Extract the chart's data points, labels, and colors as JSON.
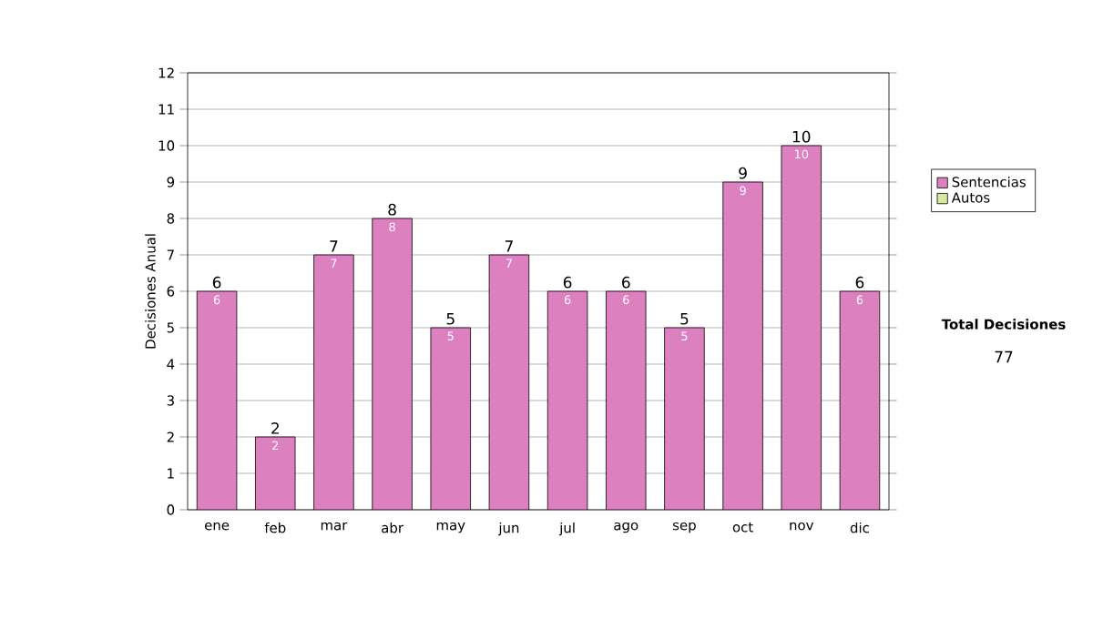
{
  "chart_data": {
    "type": "bar",
    "stacked": true,
    "ylabel": "Decisiones Anual",
    "categories": [
      "ene",
      "feb",
      "mar",
      "abr",
      "may",
      "jun",
      "jul",
      "ago",
      "sep",
      "oct",
      "nov",
      "dic"
    ],
    "series": [
      {
        "name": "Sentencias",
        "color": "#dc80c0",
        "values": [
          6,
          2,
          7,
          8,
          5,
          7,
          6,
          6,
          5,
          9,
          10,
          6
        ],
        "value_labels": [
          "6",
          "2",
          "7",
          "8",
          "5",
          "7",
          "6",
          "6",
          "5",
          "9",
          "10",
          "6"
        ]
      },
      {
        "name": "Autos",
        "color": "#d8e8a0",
        "values": [
          0,
          0,
          0,
          0,
          0,
          0,
          0,
          0,
          0,
          0,
          0,
          0
        ]
      }
    ],
    "totals": [
      "6",
      "2",
      "7",
      "8",
      "5",
      "7",
      "6",
      "6",
      "5",
      "9",
      "10",
      "6"
    ],
    "ylim": [
      0,
      12
    ],
    "yticks": [
      0,
      1,
      2,
      3,
      4,
      5,
      6,
      7,
      8,
      9,
      10,
      11,
      12
    ],
    "grid": "y",
    "legend": "right",
    "annotations": [
      "Total Decisiones",
      "77"
    ]
  }
}
